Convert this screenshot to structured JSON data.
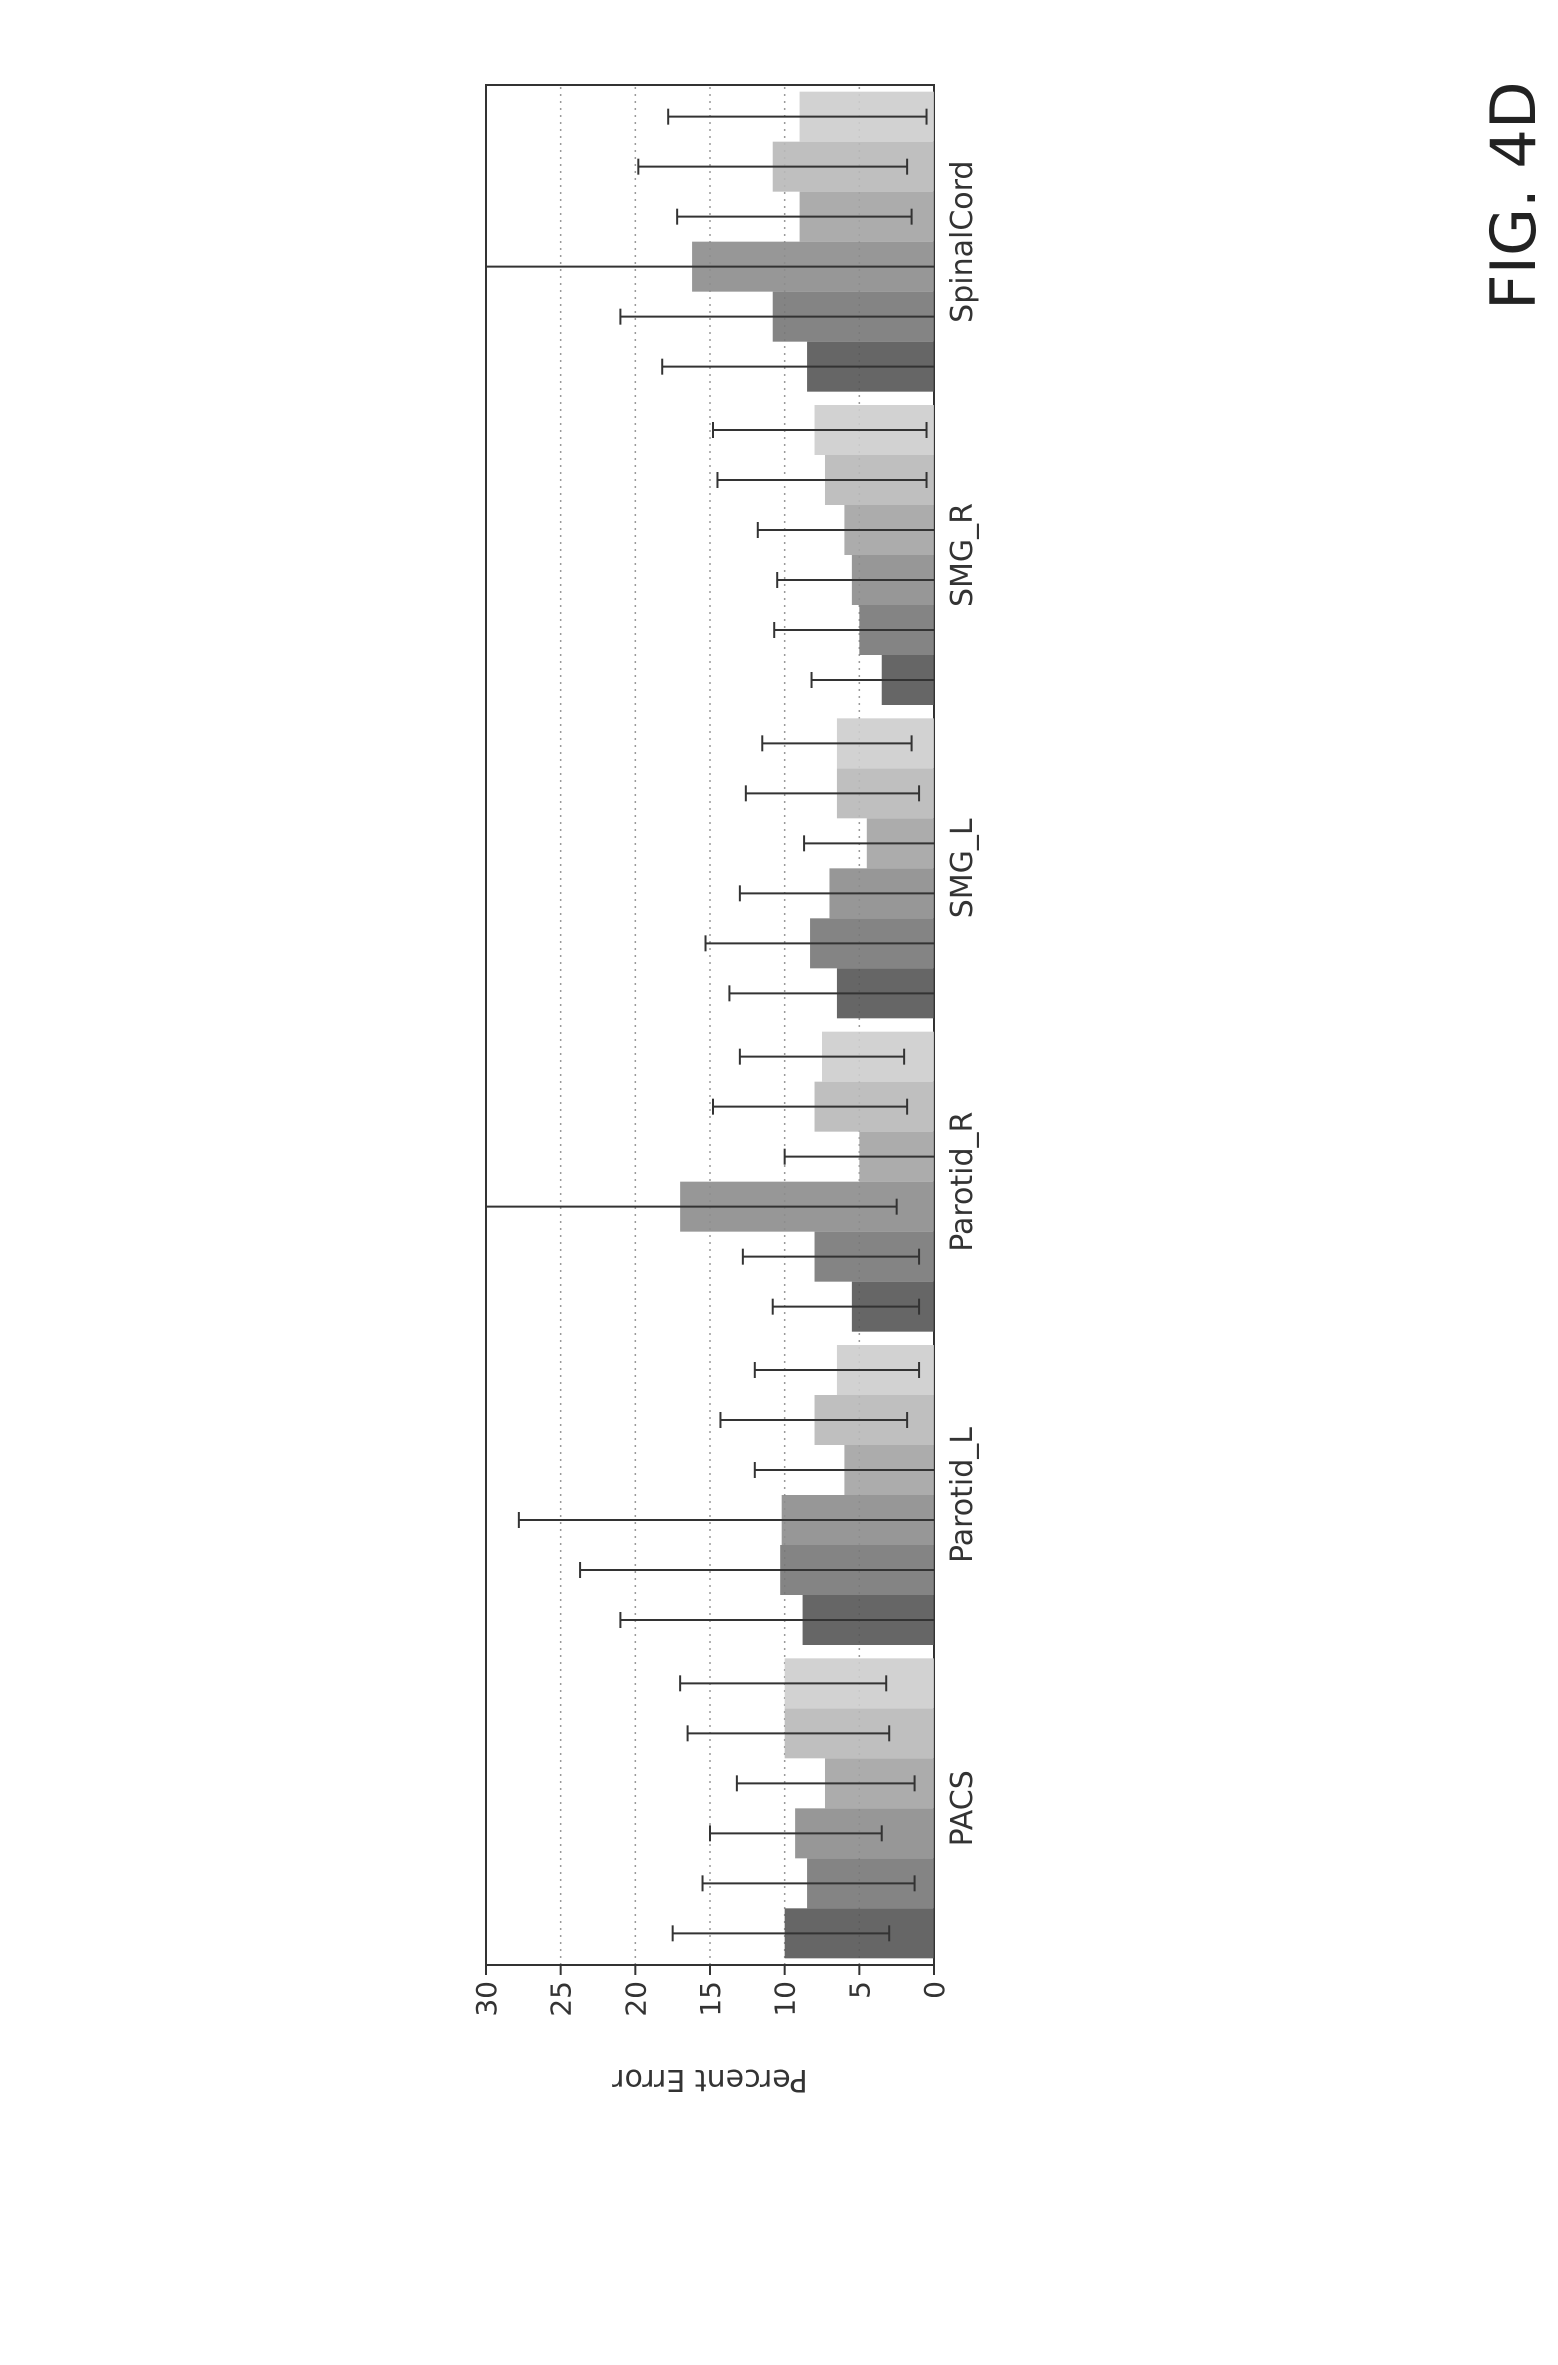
{
  "figure": {
    "label": "FIG. 4D"
  },
  "chart_data": {
    "type": "bar",
    "ylabel": "Percent Error",
    "xlabel": "",
    "ylim": [
      0,
      30
    ],
    "yticks": [
      0,
      5,
      10,
      15,
      20,
      25,
      30
    ],
    "grid": true,
    "orientation": "rotated-90",
    "categories": [
      "PACS",
      "Parotid_L",
      "Parotid_R",
      "SMG_L",
      "SMG_R",
      "SpinalCord"
    ],
    "series_colors": [
      "#555555",
      "#777777",
      "#8c8c8c",
      "#a3a3a3",
      "#b8b8b8",
      "#cdcdcd"
    ],
    "series": [
      {
        "values": [
          10.0,
          8.8,
          5.5,
          6.5,
          3.5,
          8.5
        ],
        "err_low": [
          3.0,
          0.0,
          1.0,
          0.0,
          0.0,
          0.0
        ],
        "err_high": [
          17.5,
          21.0,
          10.8,
          13.7,
          8.2,
          18.2
        ]
      },
      {
        "values": [
          8.5,
          10.3,
          8.0,
          8.3,
          5.0,
          10.8
        ],
        "err_low": [
          1.3,
          0.0,
          1.0,
          0.0,
          0.0,
          0.0
        ],
        "err_high": [
          15.5,
          23.7,
          12.8,
          15.3,
          10.7,
          21.0
        ]
      },
      {
        "values": [
          9.3,
          10.2,
          17.0,
          7.0,
          5.5,
          16.2
        ],
        "err_low": [
          3.5,
          0.0,
          2.5,
          0.0,
          0.0,
          0.0
        ],
        "err_high": [
          15.0,
          27.8,
          30.0,
          13.0,
          10.5,
          30.0
        ]
      },
      {
        "values": [
          7.3,
          6.0,
          5.0,
          4.5,
          6.0,
          9.0
        ],
        "err_low": [
          1.3,
          0.0,
          0.0,
          0.0,
          0.0,
          1.5
        ],
        "err_high": [
          13.2,
          12.0,
          10.0,
          8.7,
          11.8,
          17.2
        ]
      },
      {
        "values": [
          10.0,
          8.0,
          8.0,
          6.5,
          7.3,
          10.8
        ],
        "err_low": [
          3.0,
          1.8,
          1.8,
          1.0,
          0.5,
          1.8
        ],
        "err_high": [
          16.5,
          14.3,
          14.8,
          12.6,
          14.5,
          19.8
        ]
      },
      {
        "values": [
          10.0,
          6.5,
          7.5,
          6.5,
          8.0,
          9.0
        ],
        "err_low": [
          3.2,
          1.0,
          2.0,
          1.5,
          0.5,
          0.5
        ],
        "err_high": [
          17.0,
          12.0,
          13.0,
          11.5,
          14.8,
          17.8
        ]
      }
    ]
  }
}
